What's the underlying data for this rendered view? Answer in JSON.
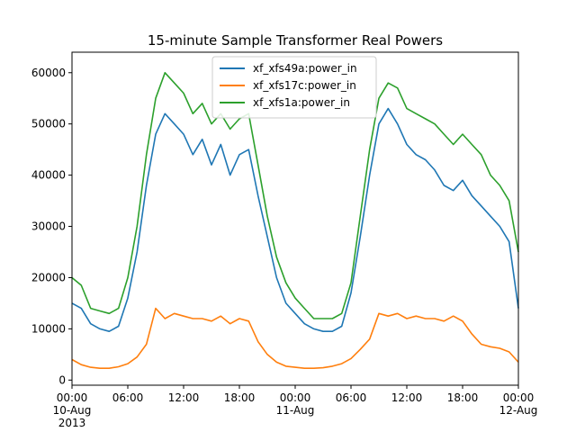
{
  "chart_data": {
    "type": "line",
    "title": "15-minute Sample Transformer Real Powers",
    "xlabel": "",
    "ylabel": "",
    "xlim": [
      "2013-08-10T00:00",
      "2013-08-12T00:00"
    ],
    "ylim": [
      -1000,
      64000
    ],
    "yticks": [
      0,
      10000,
      20000,
      30000,
      40000,
      50000,
      60000
    ],
    "xticks": [
      {
        "x": "2013-08-10T00:00",
        "lines": [
          "00:00",
          "10-Aug",
          "2013"
        ]
      },
      {
        "x": "2013-08-10T06:00",
        "lines": [
          "06:00"
        ]
      },
      {
        "x": "2013-08-10T12:00",
        "lines": [
          "12:00"
        ]
      },
      {
        "x": "2013-08-10T18:00",
        "lines": [
          "18:00"
        ]
      },
      {
        "x": "2013-08-11T00:00",
        "lines": [
          "00:00",
          "11-Aug"
        ]
      },
      {
        "x": "2013-08-11T06:00",
        "lines": [
          "06:00"
        ]
      },
      {
        "x": "2013-08-11T12:00",
        "lines": [
          "12:00"
        ]
      },
      {
        "x": "2013-08-11T18:00",
        "lines": [
          "18:00"
        ]
      },
      {
        "x": "2013-08-12T00:00",
        "lines": [
          "00:00",
          "12-Aug"
        ]
      }
    ],
    "grid": false,
    "legend": "top-center",
    "x": [
      "2013-08-10T00:00",
      "2013-08-10T01:00",
      "2013-08-10T02:00",
      "2013-08-10T03:00",
      "2013-08-10T04:00",
      "2013-08-10T05:00",
      "2013-08-10T06:00",
      "2013-08-10T07:00",
      "2013-08-10T08:00",
      "2013-08-10T09:00",
      "2013-08-10T10:00",
      "2013-08-10T11:00",
      "2013-08-10T12:00",
      "2013-08-10T13:00",
      "2013-08-10T14:00",
      "2013-08-10T15:00",
      "2013-08-10T16:00",
      "2013-08-10T17:00",
      "2013-08-10T18:00",
      "2013-08-10T19:00",
      "2013-08-10T20:00",
      "2013-08-10T21:00",
      "2013-08-10T22:00",
      "2013-08-10T23:00",
      "2013-08-11T00:00",
      "2013-08-11T01:00",
      "2013-08-11T02:00",
      "2013-08-11T03:00",
      "2013-08-11T04:00",
      "2013-08-11T05:00",
      "2013-08-11T06:00",
      "2013-08-11T07:00",
      "2013-08-11T08:00",
      "2013-08-11T09:00",
      "2013-08-11T10:00",
      "2013-08-11T11:00",
      "2013-08-11T12:00",
      "2013-08-11T13:00",
      "2013-08-11T14:00",
      "2013-08-11T15:00",
      "2013-08-11T16:00",
      "2013-08-11T17:00",
      "2013-08-11T18:00",
      "2013-08-11T19:00",
      "2013-08-11T20:00",
      "2013-08-11T21:00",
      "2013-08-11T22:00",
      "2013-08-11T23:00",
      "2013-08-12T00:00"
    ],
    "series": [
      {
        "name": "xf_xfs49a:power_in",
        "color": "#1f77b4",
        "values": [
          15000,
          14000,
          11000,
          10000,
          9500,
          10500,
          16000,
          25000,
          38000,
          48000,
          52000,
          50000,
          48000,
          44000,
          47000,
          42000,
          46000,
          40000,
          44000,
          45000,
          36000,
          28000,
          20000,
          15000,
          13000,
          11000,
          10000,
          9500,
          9500,
          10500,
          17000,
          28000,
          40000,
          50000,
          53000,
          50000,
          46000,
          44000,
          43000,
          41000,
          38000,
          37000,
          39000,
          36000,
          34000,
          32000,
          30000,
          27000,
          14000
        ]
      },
      {
        "name": "xf_xfs17c:power_in",
        "color": "#ff7f0e",
        "values": [
          4000,
          3000,
          2500,
          2300,
          2300,
          2600,
          3200,
          4500,
          7000,
          14000,
          12000,
          13000,
          12500,
          12000,
          12000,
          11500,
          12500,
          11000,
          12000,
          11500,
          7500,
          5000,
          3500,
          2700,
          2500,
          2300,
          2300,
          2400,
          2700,
          3200,
          4200,
          6000,
          8000,
          13000,
          12500,
          13000,
          12000,
          12500,
          12000,
          12000,
          11500,
          12500,
          11500,
          9000,
          7000,
          6500,
          6200,
          5500,
          3500
        ]
      },
      {
        "name": "xf_xfs1a:power_in",
        "color": "#2ca02c",
        "values": [
          20000,
          18500,
          14000,
          13500,
          13000,
          14000,
          20000,
          30000,
          44000,
          55000,
          60000,
          58000,
          56000,
          52000,
          54000,
          50000,
          52000,
          49000,
          51000,
          52000,
          42000,
          32000,
          24000,
          19000,
          16000,
          14000,
          12000,
          12000,
          12000,
          13000,
          19000,
          32000,
          45000,
          55000,
          58000,
          57000,
          53000,
          52000,
          51000,
          50000,
          48000,
          46000,
          48000,
          46000,
          44000,
          40000,
          38000,
          35000,
          25000
        ]
      }
    ]
  }
}
